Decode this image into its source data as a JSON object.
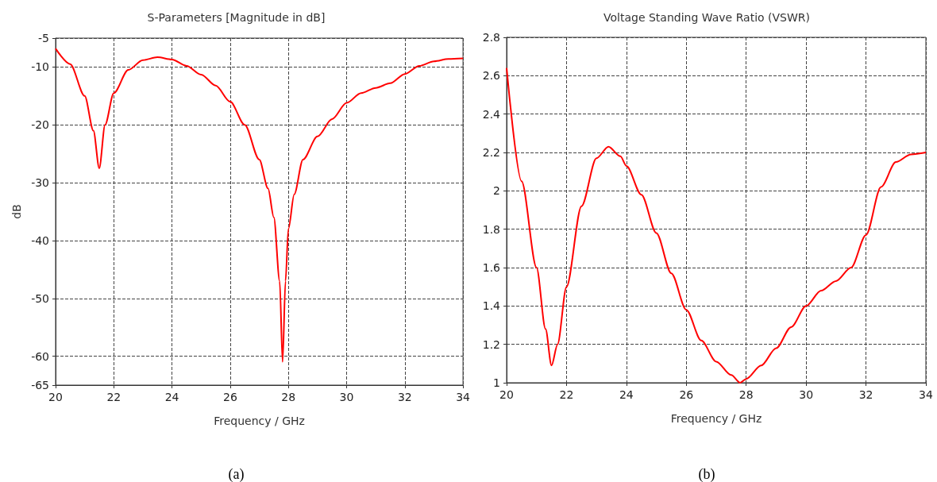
{
  "chart_data": [
    {
      "type": "line",
      "title": "S-Parameters [Magnitude in dB]",
      "xlabel": "Frequency / GHz",
      "ylabel": "dB",
      "annotations": [
        "(a)"
      ],
      "x": [
        20,
        20.5,
        21,
        21.3,
        21.5,
        21.7,
        22,
        22.5,
        23,
        23.5,
        24,
        24.5,
        25,
        25.5,
        26,
        26.5,
        27,
        27.3,
        27.5,
        27.7,
        27.8,
        27.9,
        28,
        28.2,
        28.5,
        29,
        29.5,
        30,
        30.5,
        31,
        31.5,
        32,
        32.5,
        33,
        33.5,
        34
      ],
      "series": [
        {
          "color": "#ff0000",
          "values": [
            -6.8,
            -9.5,
            -15,
            -21,
            -27.5,
            -20,
            -14.5,
            -10.5,
            -8.8,
            -8.3,
            -8.7,
            -9.8,
            -11.3,
            -13.2,
            -16,
            -20,
            -26,
            -31,
            -36,
            -47,
            -61,
            -47,
            -38,
            -32,
            -26,
            -22,
            -19,
            -16.2,
            -14.5,
            -13.6,
            -12.8,
            -11.2,
            -9.8,
            -9,
            -8.6,
            -8.5
          ]
        }
      ],
      "xlim": [
        20,
        34
      ],
      "xticks": [
        20,
        22,
        24,
        26,
        28,
        30,
        32,
        34
      ],
      "ylim": [
        -65,
        -5
      ],
      "yticks": [
        -65,
        -60,
        -50,
        -40,
        -30,
        -20,
        -10,
        -5
      ],
      "grid": true,
      "marker": "none",
      "line_style": "solid"
    },
    {
      "type": "line",
      "title": "Voltage Standing Wave Ratio (VSWR)",
      "xlabel": "Frequency / GHz",
      "annotations": [
        "(b)"
      ],
      "x": [
        20,
        20.5,
        21,
        21.3,
        21.5,
        21.7,
        22,
        22.5,
        23,
        23.4,
        23.8,
        24,
        24.5,
        25,
        25.5,
        26,
        26.5,
        27,
        27.5,
        27.8,
        28,
        28.5,
        29,
        29.5,
        30,
        30.5,
        31,
        31.5,
        32,
        32.5,
        33,
        33.5,
        34
      ],
      "series": [
        {
          "color": "#ff0000",
          "values": [
            2.64,
            2.05,
            1.6,
            1.28,
            1.09,
            1.2,
            1.5,
            1.92,
            2.17,
            2.23,
            2.18,
            2.13,
            1.98,
            1.78,
            1.57,
            1.38,
            1.22,
            1.11,
            1.04,
            1.0,
            1.02,
            1.09,
            1.18,
            1.29,
            1.4,
            1.48,
            1.53,
            1.6,
            1.77,
            2.02,
            2.15,
            2.19,
            2.2
          ]
        }
      ],
      "xlim": [
        20,
        34
      ],
      "xticks": [
        20,
        22,
        24,
        26,
        28,
        30,
        32,
        34
      ],
      "ylim": [
        1,
        2.8
      ],
      "yticks": [
        1,
        1.2,
        1.4,
        1.6,
        1.8,
        2,
        2.2,
        2.4,
        2.6,
        2.8
      ],
      "grid": true,
      "marker": "none",
      "line_style": "solid"
    }
  ]
}
